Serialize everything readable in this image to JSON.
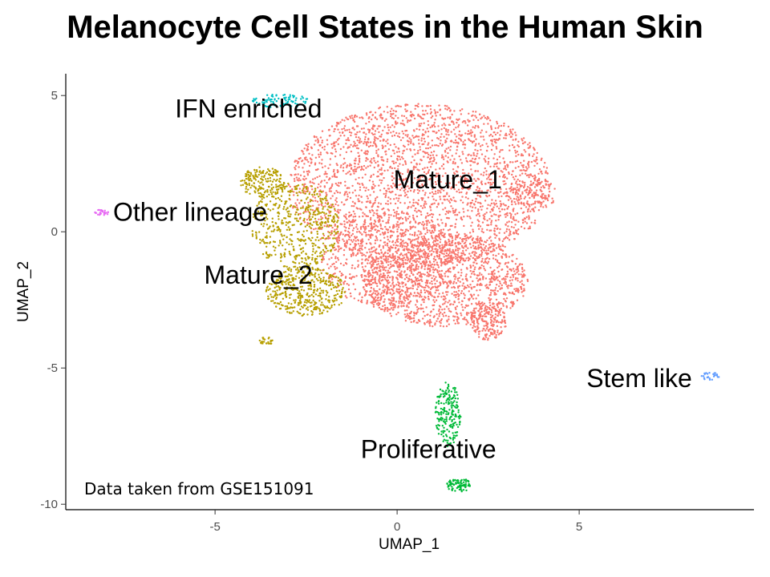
{
  "chart_data": {
    "type": "scatter",
    "title": "Melanocyte Cell States in the Human Skin",
    "xlabel": "UMAP_1",
    "ylabel": "UMAP_2",
    "xlim": [
      -9.1,
      9.8
    ],
    "ylim": [
      -10.2,
      5.8
    ],
    "x_ticks": [
      -5,
      0,
      5
    ],
    "y_ticks": [
      5,
      0,
      -5,
      -10
    ],
    "grid": false,
    "legend": "none",
    "annotation": "Data taken from GSE151091",
    "series": [
      {
        "name": "Mature_1",
        "color": "#F8766D",
        "label_pos": [
          -0.1,
          1.6
        ],
        "regions": [
          {
            "cx": 0.6,
            "cy": 1.7,
            "rx": 3.6,
            "ry": 3.0,
            "n": 2600
          },
          {
            "cx": 1.3,
            "cy": -1.8,
            "rx": 2.3,
            "ry": 1.7,
            "n": 1400
          },
          {
            "cx": -0.3,
            "cy": -1.0,
            "rx": 1.8,
            "ry": 1.8,
            "n": 600
          },
          {
            "cx": 2.5,
            "cy": -3.3,
            "rx": 0.5,
            "ry": 0.7,
            "n": 160
          },
          {
            "cx": 3.7,
            "cy": 1.4,
            "rx": 0.7,
            "ry": 0.6,
            "n": 120
          }
        ]
      },
      {
        "name": "Mature_2",
        "color": "#B79F00",
        "label_pos": [
          -5.3,
          -1.9
        ],
        "regions": [
          {
            "cx": -2.8,
            "cy": 0.2,
            "rx": 1.2,
            "ry": 1.6,
            "n": 500
          },
          {
            "cx": -2.5,
            "cy": -2.2,
            "rx": 1.1,
            "ry": 0.9,
            "n": 420
          },
          {
            "cx": -3.7,
            "cy": 1.8,
            "rx": 0.6,
            "ry": 0.6,
            "n": 180
          },
          {
            "cx": -3.6,
            "cy": -4.0,
            "rx": 0.2,
            "ry": 0.15,
            "n": 25
          }
        ]
      },
      {
        "name": "Proliferative",
        "color": "#00BA38",
        "label_pos": [
          -1.0,
          -8.3
        ],
        "regions": [
          {
            "cx": 1.4,
            "cy": -6.7,
            "rx": 0.35,
            "ry": 1.2,
            "n": 200
          },
          {
            "cx": 1.7,
            "cy": -9.3,
            "rx": 0.35,
            "ry": 0.25,
            "n": 90
          }
        ]
      },
      {
        "name": "IFN enriched",
        "color": "#00BFC4",
        "label_pos": [
          -6.1,
          4.2
        ],
        "regions": [
          {
            "cx": -3.2,
            "cy": 4.8,
            "rx": 0.8,
            "ry": 0.25,
            "n": 90
          }
        ]
      },
      {
        "name": "Other lineage",
        "color": "#E76BF3",
        "label_pos": [
          -7.8,
          0.4
        ],
        "regions": [
          {
            "cx": -8.1,
            "cy": 0.7,
            "rx": 0.2,
            "ry": 0.12,
            "n": 30
          }
        ]
      },
      {
        "name": "Stem like",
        "color": "#619CFF",
        "label_pos": [
          5.2,
          -5.7
        ],
        "regions": [
          {
            "cx": 8.6,
            "cy": -5.3,
            "rx": 0.25,
            "ry": 0.15,
            "n": 25
          }
        ]
      }
    ]
  }
}
